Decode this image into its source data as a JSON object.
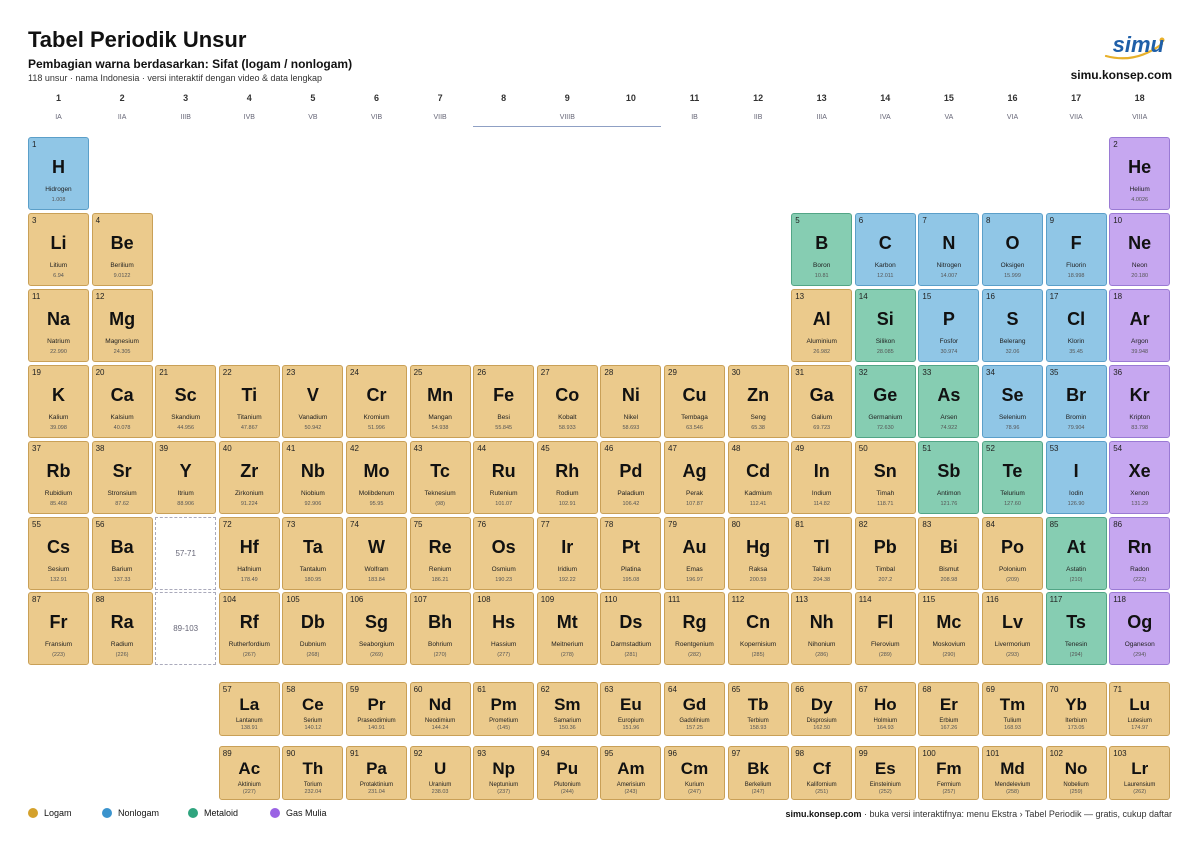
{
  "header": {
    "title": "Tabel Periodik Unsur",
    "subtitle": "Pembagian warna berdasarkan: Sifat (logam / nonlogam)",
    "info": "118 unsur · nama Indonesia · versi interaktif dengan video & data lengkap",
    "logo": "simu",
    "site": "simu.konsep.com"
  },
  "groups": {
    "numbers": [
      1,
      2,
      3,
      4,
      5,
      6,
      7,
      8,
      9,
      10,
      11,
      12,
      13,
      14,
      15,
      16,
      17,
      18
    ],
    "labels": [
      "IA",
      "IIA",
      "IIIB",
      "IVB",
      "VB",
      "VIB",
      "VIIB",
      "VIIIB",
      "IB",
      "IIB",
      "IIIA",
      "IVA",
      "VA",
      "VIA",
      "VIIA",
      "VIIIA"
    ]
  },
  "placeholders": [
    "57-71",
    "89-103"
  ],
  "legend": [
    {
      "name": "Logam",
      "color": "#d4a12c",
      "fill": "#ebca8c",
      "stroke": "#c9a057"
    },
    {
      "name": "Nonlogam",
      "color": "#3a93cd",
      "fill": "#90c6e6",
      "stroke": "#5b9fc9"
    },
    {
      "name": "Metaloid",
      "color": "#2fa47e",
      "fill": "#86cdb2",
      "stroke": "#52a586"
    },
    {
      "name": "Gas Mulia",
      "color": "#9a63e4",
      "fill": "#c6a7f0",
      "stroke": "#9a7ad4"
    }
  ],
  "elements": [
    [
      1,
      "H",
      "Hidrogen",
      "1.008",
      1
    ],
    [
      2,
      "He",
      "Helium",
      "4.0026",
      3
    ],
    [
      3,
      "Li",
      "Litium",
      "6.94",
      0
    ],
    [
      4,
      "Be",
      "Berilium",
      "9.0122",
      0
    ],
    [
      5,
      "B",
      "Boron",
      "10.81",
      2
    ],
    [
      6,
      "C",
      "Karbon",
      "12.011",
      1
    ],
    [
      7,
      "N",
      "Nitrogen",
      "14.007",
      1
    ],
    [
      8,
      "O",
      "Oksigen",
      "15.999",
      1
    ],
    [
      9,
      "F",
      "Fluorin",
      "18.998",
      1
    ],
    [
      10,
      "Ne",
      "Neon",
      "20.180",
      3
    ],
    [
      11,
      "Na",
      "Natrium",
      "22.990",
      0
    ],
    [
      12,
      "Mg",
      "Magnesium",
      "24.305",
      0
    ],
    [
      13,
      "Al",
      "Aluminium",
      "26.982",
      0
    ],
    [
      14,
      "Si",
      "Silikon",
      "28.085",
      2
    ],
    [
      15,
      "P",
      "Fosfor",
      "30.974",
      1
    ],
    [
      16,
      "S",
      "Belerang",
      "32.06",
      1
    ],
    [
      17,
      "Cl",
      "Klorin",
      "35.45",
      1
    ],
    [
      18,
      "Ar",
      "Argon",
      "39.948",
      3
    ],
    [
      19,
      "K",
      "Kalium",
      "39.098",
      0
    ],
    [
      20,
      "Ca",
      "Kalsium",
      "40.078",
      0
    ],
    [
      21,
      "Sc",
      "Skandium",
      "44.956",
      0
    ],
    [
      22,
      "Ti",
      "Titanium",
      "47.867",
      0
    ],
    [
      23,
      "V",
      "Vanadium",
      "50.942",
      0
    ],
    [
      24,
      "Cr",
      "Kromium",
      "51.996",
      0
    ],
    [
      25,
      "Mn",
      "Mangan",
      "54.938",
      0
    ],
    [
      26,
      "Fe",
      "Besi",
      "55.845",
      0
    ],
    [
      27,
      "Co",
      "Kobalt",
      "58.933",
      0
    ],
    [
      28,
      "Ni",
      "Nikel",
      "58.693",
      0
    ],
    [
      29,
      "Cu",
      "Tembaga",
      "63.546",
      0
    ],
    [
      30,
      "Zn",
      "Seng",
      "65.38",
      0
    ],
    [
      31,
      "Ga",
      "Galium",
      "69.723",
      0
    ],
    [
      32,
      "Ge",
      "Germanium",
      "72.630",
      2
    ],
    [
      33,
      "As",
      "Arsen",
      "74.922",
      2
    ],
    [
      34,
      "Se",
      "Selenium",
      "78.96",
      1
    ],
    [
      35,
      "Br",
      "Bromin",
      "79.904",
      1
    ],
    [
      36,
      "Kr",
      "Kripton",
      "83.798",
      3
    ],
    [
      37,
      "Rb",
      "Rubidium",
      "85.468",
      0
    ],
    [
      38,
      "Sr",
      "Stronsium",
      "87.62",
      0
    ],
    [
      39,
      "Y",
      "Itrium",
      "88.906",
      0
    ],
    [
      40,
      "Zr",
      "Zirkonium",
      "91.224",
      0
    ],
    [
      41,
      "Nb",
      "Niobium",
      "92.906",
      0
    ],
    [
      42,
      "Mo",
      "Molibdenum",
      "95.95",
      0
    ],
    [
      43,
      "Tc",
      "Teknesium",
      "(98)",
      0
    ],
    [
      44,
      "Ru",
      "Rutenium",
      "101.07",
      0
    ],
    [
      45,
      "Rh",
      "Rodium",
      "102.91",
      0
    ],
    [
      46,
      "Pd",
      "Paladium",
      "106.42",
      0
    ],
    [
      47,
      "Ag",
      "Perak",
      "107.87",
      0
    ],
    [
      48,
      "Cd",
      "Kadmium",
      "112.41",
      0
    ],
    [
      49,
      "In",
      "Indium",
      "114.82",
      0
    ],
    [
      50,
      "Sn",
      "Timah",
      "118.71",
      0
    ],
    [
      51,
      "Sb",
      "Antimon",
      "121.76",
      2
    ],
    [
      52,
      "Te",
      "Telurium",
      "127.60",
      2
    ],
    [
      53,
      "I",
      "Iodin",
      "126.90",
      1
    ],
    [
      54,
      "Xe",
      "Xenon",
      "131.29",
      3
    ],
    [
      55,
      "Cs",
      "Sesium",
      "132.91",
      0
    ],
    [
      56,
      "Ba",
      "Barium",
      "137.33",
      0
    ],
    [
      57,
      "La",
      "Lantanum",
      "138.91",
      0
    ],
    [
      58,
      "Ce",
      "Serium",
      "140.12",
      0
    ],
    [
      59,
      "Pr",
      "Praseodimium",
      "140.91",
      0
    ],
    [
      60,
      "Nd",
      "Neodimium",
      "144.24",
      0
    ],
    [
      61,
      "Pm",
      "Prometium",
      "(145)",
      0
    ],
    [
      62,
      "Sm",
      "Samarium",
      "150.36",
      0
    ],
    [
      63,
      "Eu",
      "Europium",
      "151.96",
      0
    ],
    [
      64,
      "Gd",
      "Gadolinium",
      "157.25",
      0
    ],
    [
      65,
      "Tb",
      "Terbium",
      "158.93",
      0
    ],
    [
      66,
      "Dy",
      "Disprosium",
      "162.50",
      0
    ],
    [
      67,
      "Ho",
      "Holmium",
      "164.93",
      0
    ],
    [
      68,
      "Er",
      "Erbium",
      "167.26",
      0
    ],
    [
      69,
      "Tm",
      "Tulium",
      "168.93",
      0
    ],
    [
      70,
      "Yb",
      "Iterbium",
      "173.05",
      0
    ],
    [
      71,
      "Lu",
      "Lutesium",
      "174.97",
      0
    ],
    [
      72,
      "Hf",
      "Hafnium",
      "178.49",
      0
    ],
    [
      73,
      "Ta",
      "Tantalum",
      "180.95",
      0
    ],
    [
      74,
      "W",
      "Wolfram",
      "183.84",
      0
    ],
    [
      75,
      "Re",
      "Renium",
      "186.21",
      0
    ],
    [
      76,
      "Os",
      "Osmium",
      "190.23",
      0
    ],
    [
      77,
      "Ir",
      "Iridium",
      "192.22",
      0
    ],
    [
      78,
      "Pt",
      "Platina",
      "195.08",
      0
    ],
    [
      79,
      "Au",
      "Emas",
      "196.97",
      0
    ],
    [
      80,
      "Hg",
      "Raksa",
      "200.59",
      0
    ],
    [
      81,
      "Tl",
      "Talium",
      "204.38",
      0
    ],
    [
      82,
      "Pb",
      "Timbal",
      "207.2",
      0
    ],
    [
      83,
      "Bi",
      "Bismut",
      "208.98",
      0
    ],
    [
      84,
      "Po",
      "Polonium",
      "(209)",
      0
    ],
    [
      85,
      "At",
      "Astatin",
      "(210)",
      2
    ],
    [
      86,
      "Rn",
      "Radon",
      "(222)",
      3
    ],
    [
      87,
      "Fr",
      "Fransium",
      "(223)",
      0
    ],
    [
      88,
      "Ra",
      "Radium",
      "(226)",
      0
    ],
    [
      89,
      "Ac",
      "Aktinium",
      "(227)",
      0
    ],
    [
      90,
      "Th",
      "Torium",
      "232.04",
      0
    ],
    [
      91,
      "Pa",
      "Protaktinium",
      "231.04",
      0
    ],
    [
      92,
      "U",
      "Uranium",
      "238.03",
      0
    ],
    [
      93,
      "Np",
      "Neptunium",
      "(237)",
      0
    ],
    [
      94,
      "Pu",
      "Plutonium",
      "(244)",
      0
    ],
    [
      95,
      "Am",
      "Amerisium",
      "(243)",
      0
    ],
    [
      96,
      "Cm",
      "Kurium",
      "(247)",
      0
    ],
    [
      97,
      "Bk",
      "Berkelium",
      "(247)",
      0
    ],
    [
      98,
      "Cf",
      "Kalifornium",
      "(251)",
      0
    ],
    [
      99,
      "Es",
      "Einsteinium",
      "(252)",
      0
    ],
    [
      100,
      "Fm",
      "Fermium",
      "(257)",
      0
    ],
    [
      101,
      "Md",
      "Mendelevium",
      "(258)",
      0
    ],
    [
      102,
      "No",
      "Nobelium",
      "(259)",
      0
    ],
    [
      103,
      "Lr",
      "Laurensium",
      "(262)",
      0
    ],
    [
      104,
      "Rf",
      "Rutherfordium",
      "(267)",
      0
    ],
    [
      105,
      "Db",
      "Dubnium",
      "(268)",
      0
    ],
    [
      106,
      "Sg",
      "Seaborgium",
      "(269)",
      0
    ],
    [
      107,
      "Bh",
      "Bohrium",
      "(270)",
      0
    ],
    [
      108,
      "Hs",
      "Hassium",
      "(277)",
      0
    ],
    [
      109,
      "Mt",
      "Meitnerium",
      "(278)",
      0
    ],
    [
      110,
      "Ds",
      "Darmstadtium",
      "(281)",
      0
    ],
    [
      111,
      "Rg",
      "Roentgenium",
      "(282)",
      0
    ],
    [
      112,
      "Cn",
      "Kopernisium",
      "(285)",
      0
    ],
    [
      113,
      "Nh",
      "Nihonium",
      "(286)",
      0
    ],
    [
      114,
      "Fl",
      "Flerovium",
      "(289)",
      0
    ],
    [
      115,
      "Mc",
      "Moskovium",
      "(290)",
      0
    ],
    [
      116,
      "Lv",
      "Livermorium",
      "(293)",
      0
    ],
    [
      117,
      "Ts",
      "Tenesin",
      "(294)",
      2
    ],
    [
      118,
      "Og",
      "Oganeson",
      "(294)",
      3
    ]
  ],
  "footer": {
    "site": "simu.konsep.com",
    "text": " · buka versi interaktifnya: menu Ekstra › Tabel Periodik — gratis, cukup daftar"
  }
}
